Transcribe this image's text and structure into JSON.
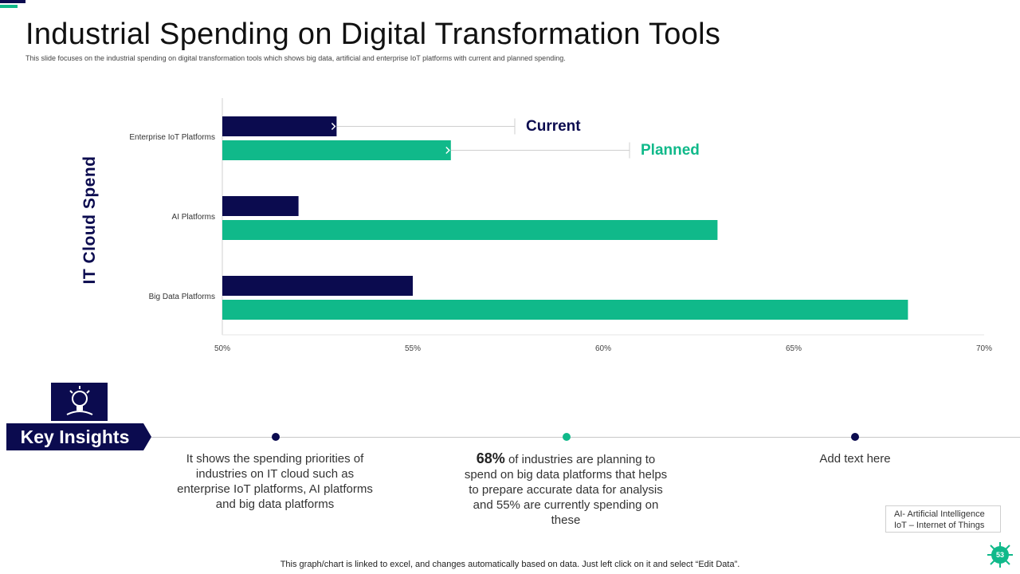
{
  "header": {
    "title": "Industrial Spending on Digital Transformation Tools",
    "subtitle": "This slide focuses on the industrial spending on digital transformation tools which shows big data, artificial and enterprise IoT platforms with current and planned spending."
  },
  "colors": {
    "current": "#0b0b4f",
    "planned": "#10b98a"
  },
  "chart_data": {
    "type": "bar",
    "orientation": "horizontal",
    "title": "",
    "ylabel": "IT Cloud Spend",
    "xlabel": "",
    "categories": [
      "Enterprise IoT Platforms",
      "AI Platforms",
      "Big Data Platforms"
    ],
    "series": [
      {
        "name": "Current",
        "values": [
          53,
          52,
          55
        ]
      },
      {
        "name": "Planned",
        "values": [
          56,
          63,
          68
        ]
      }
    ],
    "xlim": [
      50,
      70
    ],
    "xticks": [
      50,
      55,
      60,
      65,
      70
    ],
    "tick_suffix": "%",
    "grid": false,
    "legend_placement": "callout-right-of-top-category"
  },
  "insights": {
    "banner_label": "Key Insights",
    "item1": "It shows the spending priorities of industries on IT cloud such as enterprise IoT platforms, AI platforms and big data platforms",
    "item2_highlight": "68%",
    "item2_text": " of industries are planning to spend on big data platforms that helps to prepare accurate data for analysis and 55% are currently  spending on these",
    "item3": "Add text here"
  },
  "abbreviations": {
    "line1": "AI- Artificial Intelligence",
    "line2": "IoT – Internet of Things"
  },
  "footnote": "This graph/chart is linked to excel,  and changes automatically based on data. Just left click on it and select “Edit Data”.",
  "page_number": "53"
}
